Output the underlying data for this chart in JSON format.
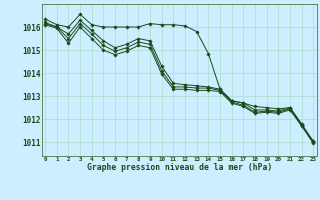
{
  "title": "Graphe pression niveau de la mer (hPa)",
  "background_color": "#cceeff",
  "grid_color": "#aaddcc",
  "line_color": "#1a4a1a",
  "x_ticks": [
    0,
    1,
    2,
    3,
    4,
    5,
    6,
    7,
    8,
    9,
    10,
    11,
    12,
    13,
    14,
    15,
    16,
    17,
    18,
    19,
    20,
    21,
    22,
    23
  ],
  "ylim": [
    1010.4,
    1017.0
  ],
  "yticks": [
    1011,
    1012,
    1013,
    1014,
    1015,
    1016
  ],
  "series": [
    [
      1016.35,
      1016.1,
      1016.0,
      1016.55,
      1016.1,
      1016.0,
      1016.0,
      1016.0,
      1016.0,
      1016.15,
      1016.1,
      1016.1,
      1016.05,
      1015.8,
      1014.85,
      1013.3,
      1012.8,
      1012.7,
      1012.55,
      1012.5,
      1012.45,
      1012.5,
      1011.75,
      1011.05
    ],
    [
      1016.2,
      1016.0,
      1015.7,
      1016.3,
      1015.85,
      1015.4,
      1015.1,
      1015.25,
      1015.5,
      1015.4,
      1014.3,
      1013.55,
      1013.5,
      1013.45,
      1013.4,
      1013.3,
      1012.8,
      1012.7,
      1012.4,
      1012.4,
      1012.35,
      1012.5,
      1011.8,
      1011.0
    ],
    [
      1016.15,
      1016.0,
      1015.5,
      1016.15,
      1015.7,
      1015.2,
      1014.95,
      1015.1,
      1015.35,
      1015.25,
      1014.1,
      1013.4,
      1013.4,
      1013.35,
      1013.35,
      1013.25,
      1012.75,
      1012.6,
      1012.3,
      1012.35,
      1012.3,
      1012.45,
      1011.75,
      1011.0
    ],
    [
      1016.1,
      1015.95,
      1015.3,
      1016.0,
      1015.5,
      1015.0,
      1014.8,
      1014.95,
      1015.2,
      1015.1,
      1013.95,
      1013.3,
      1013.3,
      1013.25,
      1013.25,
      1013.2,
      1012.7,
      1012.55,
      1012.25,
      1012.3,
      1012.25,
      1012.4,
      1011.7,
      1010.95
    ]
  ]
}
